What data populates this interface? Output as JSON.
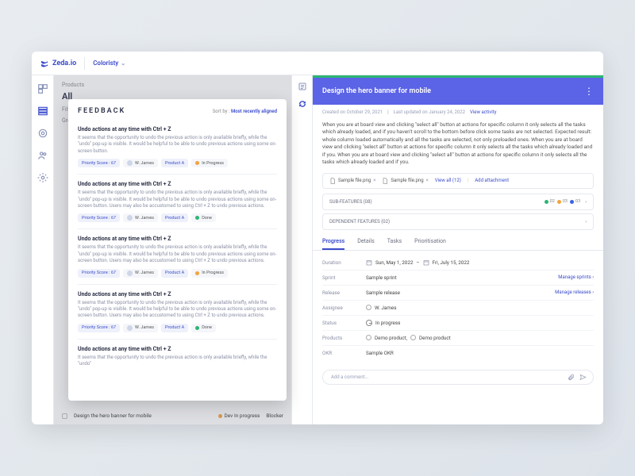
{
  "brand": {
    "name": "Zeda.io",
    "workspace": "Coloristy"
  },
  "sidebar_icons": [
    "dashboard",
    "list",
    "target",
    "group",
    "settings"
  ],
  "left_bg": {
    "crumb": "Products",
    "title": "All",
    "filter": "Filter",
    "group": "Group"
  },
  "bottom_row": {
    "title": "Design the hero banner for mobile",
    "status": "Dev In progress",
    "blocker": "Blocker"
  },
  "feedback": {
    "header": "FEEDBACK",
    "sort_label": "Sort by :",
    "sort_value": "Most recently aligned",
    "items": [
      {
        "title": "Undo actions at any time with Ctrl + Z",
        "body": "It seems that the opportunity to undo the previous action is only available briefly, while the \"undo\" pop-up is visible. It would be helpful to be able to undo previous actions using some on-screen button.",
        "score": "Priority Score : 67",
        "user": "W. James",
        "product": "Product A",
        "status": "In Progress",
        "status_color": "orange"
      },
      {
        "title": "Undo actions at any time with Ctrl + Z",
        "body": "It seems that the opportunity to undo the previous action is only available briefly, while the \"undo\" pop-up is visible. It would be helpful to be able to undo previous actions using some on-screen button. Users may also be accustomed to using Ctrl + Z to undo previous actions.",
        "score": "Priority Score : 67",
        "user": "W. James",
        "product": "Product A",
        "status": "Done",
        "status_color": "green"
      },
      {
        "title": "Undo actions at any time with Ctrl + Z",
        "body": "It seems that the opportunity to undo the previous action is only available briefly, while the \"undo\" pop-up is visible. It would be helpful to be able to undo previous actions using some on-screen button. Users may also be accustomed to using Ctrl + Z to undo previous actions.",
        "score": "Priority Score : 67",
        "user": "W. James",
        "product": "Product A",
        "status": "In Progress",
        "status_color": "orange"
      },
      {
        "title": "Undo actions at any time with Ctrl + Z",
        "body": "It seems that the opportunity to undo the previous action is only available briefly, while the \"undo\" pop-up is visible. It would be helpful to be able to undo previous actions using some on-screen button. Users may also be accustomed to using Ctrl + Z to undo previous actions.",
        "score": "Priority Score : 67",
        "user": "W. James",
        "product": "Product A",
        "status": "Done",
        "status_color": "green"
      },
      {
        "title": "Undo actions at any time with Ctrl + Z",
        "body": "It seems that the opportunity to undo the previous action is only available briefly, while the \"undo\"",
        "score": "",
        "user": "",
        "product": "",
        "status": "",
        "status_color": ""
      }
    ]
  },
  "right": {
    "title": "Design the hero banner for mobile",
    "created": "Created on October 29, 2021",
    "updated": "Last updated on January 24, 2022",
    "view_activity": "View activity",
    "desc": "When you are at board view and clicking \"select all\" button at actions for specific column it only selects all the tasks which already loaded, and if you haven't scroll to the bottom before click some tasks are not selected.\nExpected result: whole column loaded automatically and all the tasks are selected, not only preloaded ones. When you are at board view and clicking \"select all\" button at actions for specific column it only selects all the tasks which already loaded and if you. When you are at board view and clicking \"select all\" button at actions for specific column it only selects all the tasks which already loaded and if you.",
    "files": [
      {
        "name": "Sample file.png"
      },
      {
        "name": "Sample file.png"
      }
    ],
    "view_all": "View all (12)",
    "add_attachment": "Add attachment",
    "subfeatures": "SUB-FEATURES  (08)",
    "subfeatures_badges": [
      {
        "color": "green",
        "n": "02"
      },
      {
        "color": "orange",
        "n": "03"
      },
      {
        "color": "blue",
        "n": "03"
      }
    ],
    "dependent": "DEPENDENT FEATURES  (02)",
    "tabs": [
      "Progress",
      "Details",
      "Tasks",
      "Prioritisation"
    ],
    "rows": {
      "duration_label": "Duration",
      "duration_start": "Sun, May 1, 2022",
      "duration_end": "Fri, July 15, 2022",
      "sprint_label": "Sprint",
      "sprint_val": "Sample sprint",
      "sprint_link": "Manage sprints",
      "release_label": "Release",
      "release_val": "Sample release",
      "release_link": "Manage releases",
      "assignee_label": "Assignee",
      "assignee_val": "W. James",
      "status_label": "Status",
      "status_val": "In progress",
      "products_label": "Products",
      "products_val1": "Demo product,",
      "products_val2": "Demo product",
      "okr_label": "OKR",
      "okr_val": "Sample OKR"
    },
    "comment_placeholder": "Add a comment..."
  },
  "colors": {
    "primary": "#5b63e6",
    "link": "#3b4ccb",
    "green": "#2bb673",
    "orange": "#f2a33c"
  }
}
